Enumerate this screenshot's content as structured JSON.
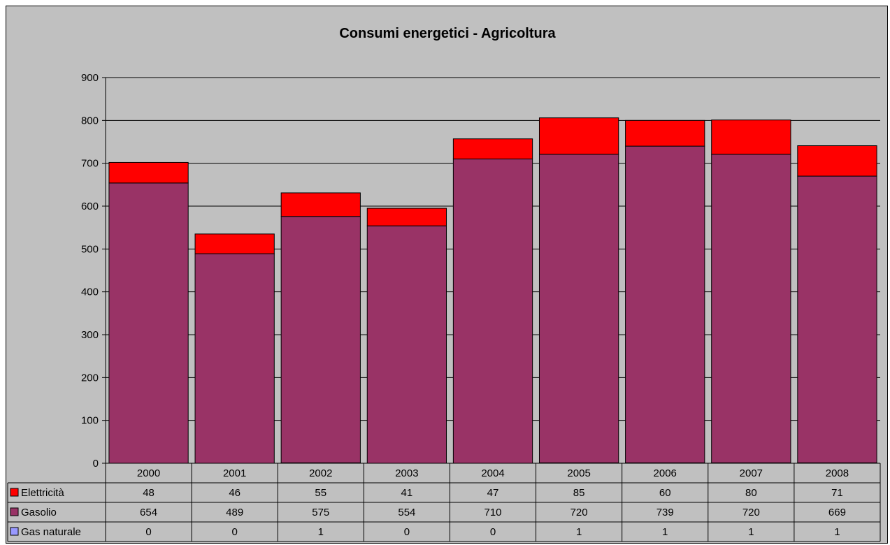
{
  "colors": {
    "background": "#c0c0c0",
    "Elettricità": "#ff0000",
    "Gasolio": "#993366",
    "Gas naturale": "#9999ff"
  },
  "chart_data": {
    "type": "bar",
    "stacked": true,
    "title": "Consumi energetici - Agricoltura",
    "categories": [
      "2000",
      "2001",
      "2002",
      "2003",
      "2004",
      "2005",
      "2006",
      "2007",
      "2008"
    ],
    "series": [
      {
        "name": "Elettricità",
        "values": [
          48,
          46,
          55,
          41,
          47,
          85,
          60,
          80,
          71
        ]
      },
      {
        "name": "Gasolio",
        "values": [
          654,
          489,
          575,
          554,
          710,
          720,
          739,
          720,
          669
        ]
      },
      {
        "name": "Gas naturale",
        "values": [
          0,
          0,
          1,
          0,
          0,
          1,
          1,
          1,
          1
        ]
      }
    ],
    "stack_order": [
      "Gas naturale",
      "Gasolio",
      "Elettricità"
    ],
    "ylim": [
      0,
      900
    ],
    "yticks": [
      0,
      100,
      200,
      300,
      400,
      500,
      600,
      700,
      800,
      900
    ],
    "grid": true,
    "legend": "data table below chart"
  }
}
